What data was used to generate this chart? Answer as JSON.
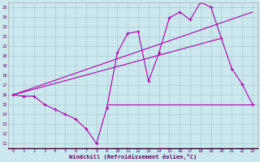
{
  "xlabel": "Windchill (Refroidissement éolien,°C)",
  "bg_color": "#cce8ef",
  "grid_color": "#aacccc",
  "line_color": "#aa00aa",
  "xlim": [
    -0.5,
    23.5
  ],
  "ylim": [
    10.5,
    25.5
  ],
  "xticks": [
    0,
    1,
    2,
    3,
    4,
    5,
    6,
    7,
    8,
    9,
    10,
    11,
    12,
    13,
    14,
    15,
    16,
    17,
    18,
    19,
    20,
    21,
    22,
    23
  ],
  "yticks": [
    11,
    12,
    13,
    14,
    15,
    16,
    17,
    18,
    19,
    20,
    21,
    22,
    23,
    24,
    25
  ],
  "series1_x": [
    0,
    1,
    2,
    3,
    4,
    5,
    6,
    7,
    8,
    9,
    10,
    11,
    12,
    13,
    14,
    15,
    16,
    17,
    18,
    19,
    20,
    21,
    22,
    23
  ],
  "series1_y": [
    16.0,
    15.85,
    15.85,
    15.0,
    14.5,
    14.0,
    13.5,
    12.5,
    11.0,
    14.7,
    20.3,
    22.3,
    22.5,
    17.4,
    20.3,
    23.9,
    24.5,
    23.7,
    25.5,
    25.0,
    21.8,
    18.7,
    17.1,
    15.0
  ],
  "series2_x": [
    0,
    23
  ],
  "series2_y": [
    16.0,
    24.5
  ],
  "series3_x": [
    9,
    23
  ],
  "series3_y": [
    15.0,
    15.0
  ],
  "series4_x": [
    0,
    20
  ],
  "series4_y": [
    16.0,
    21.8
  ]
}
